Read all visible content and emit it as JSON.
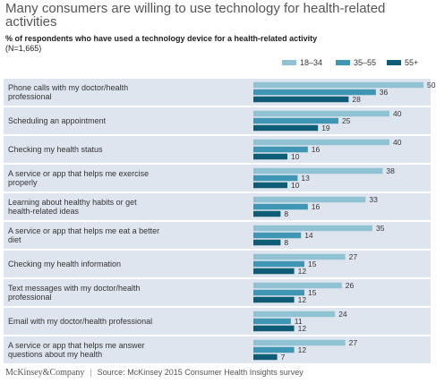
{
  "title": "Many consumers are willing to use technology for health-related activities",
  "subtitle": "% of respondents who have used a technology device for a health-related activity",
  "sample": "(N=1,665)",
  "footer": {
    "brand": "McKinsey&Company",
    "separator": "|",
    "source": "Source: McKinsey 2015 Consumer Health Insights survey"
  },
  "colors": {
    "series_18_34": "#8fc3d4",
    "series_35_55": "#3e95b4",
    "series_55_plus": "#0f5c78",
    "row_background": "#dfe5ef"
  },
  "chart_data": {
    "type": "bar",
    "orientation": "horizontal",
    "categories": [
      "Phone calls with my doctor/health professional",
      "Scheduling an appointment",
      "Checking my health status",
      "A service or app that helps me exercise properly",
      "Learning about healthy habits or get health-related ideas",
      "A service or app that helps me eat a better diet",
      "Checking my health information",
      "Text messages with my doctor/health professional",
      "Email with my doctor/health professional",
      "A service or app that helps me answer questions about my  health"
    ],
    "series": [
      {
        "name": "18–34",
        "values": [
          50,
          40,
          40,
          38,
          33,
          35,
          27,
          26,
          24,
          27
        ]
      },
      {
        "name": "35–55",
        "values": [
          36,
          25,
          16,
          13,
          16,
          14,
          15,
          15,
          11,
          12
        ]
      },
      {
        "name": "55+",
        "values": [
          28,
          19,
          10,
          10,
          8,
          8,
          12,
          12,
          12,
          7
        ]
      }
    ],
    "xlim": [
      0,
      50
    ],
    "legend_position": "top-right",
    "data_labels": true,
    "grid": false
  }
}
